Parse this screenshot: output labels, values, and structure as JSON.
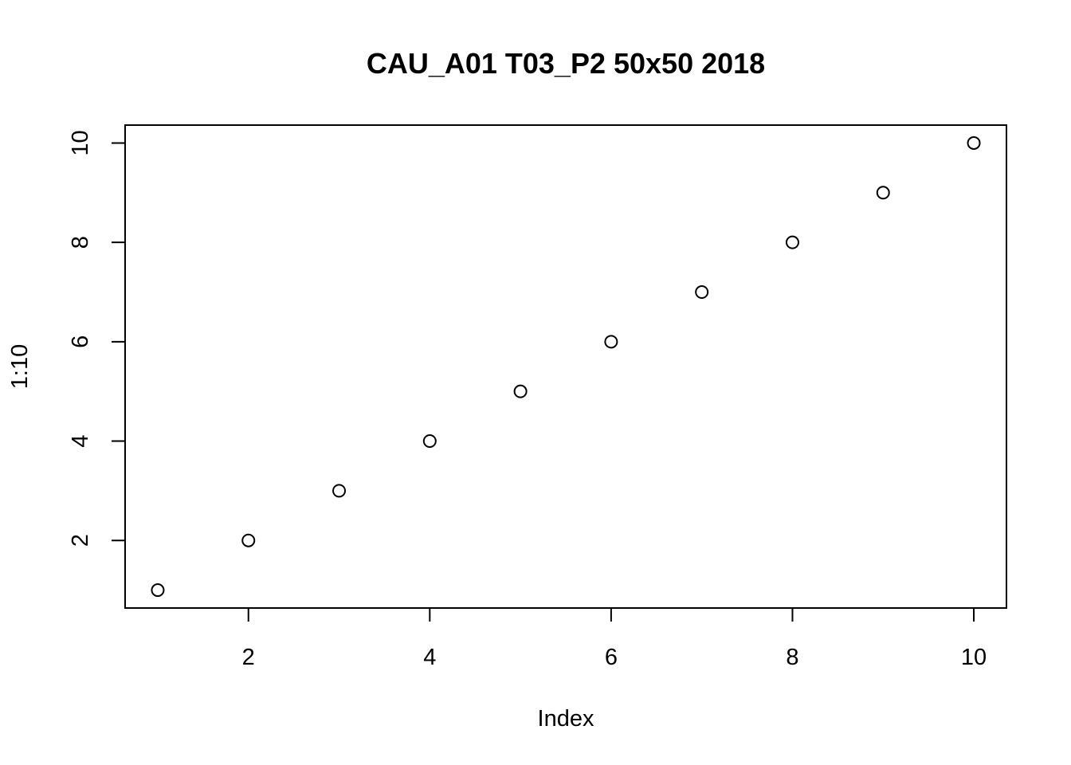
{
  "chart_data": {
    "type": "scatter",
    "title": "CAU_A01 T03_P2 50x50 2018",
    "xlabel": "Index",
    "ylabel": "1:10",
    "x_ticks": [
      2,
      4,
      6,
      8,
      10
    ],
    "y_ticks": [
      2,
      4,
      6,
      8,
      10
    ],
    "xlim": [
      0.64,
      10.36
    ],
    "ylim": [
      0.64,
      10.36
    ],
    "grid": false,
    "marker": "open-circle",
    "points": [
      {
        "x": 1,
        "y": 1
      },
      {
        "x": 2,
        "y": 2
      },
      {
        "x": 3,
        "y": 3
      },
      {
        "x": 4,
        "y": 4
      },
      {
        "x": 5,
        "y": 5
      },
      {
        "x": 6,
        "y": 6
      },
      {
        "x": 7,
        "y": 7
      },
      {
        "x": 8,
        "y": 8
      },
      {
        "x": 9,
        "y": 9
      },
      {
        "x": 10,
        "y": 10
      }
    ],
    "colors": {
      "marker_stroke": "#000000",
      "background": "#ffffff"
    }
  }
}
